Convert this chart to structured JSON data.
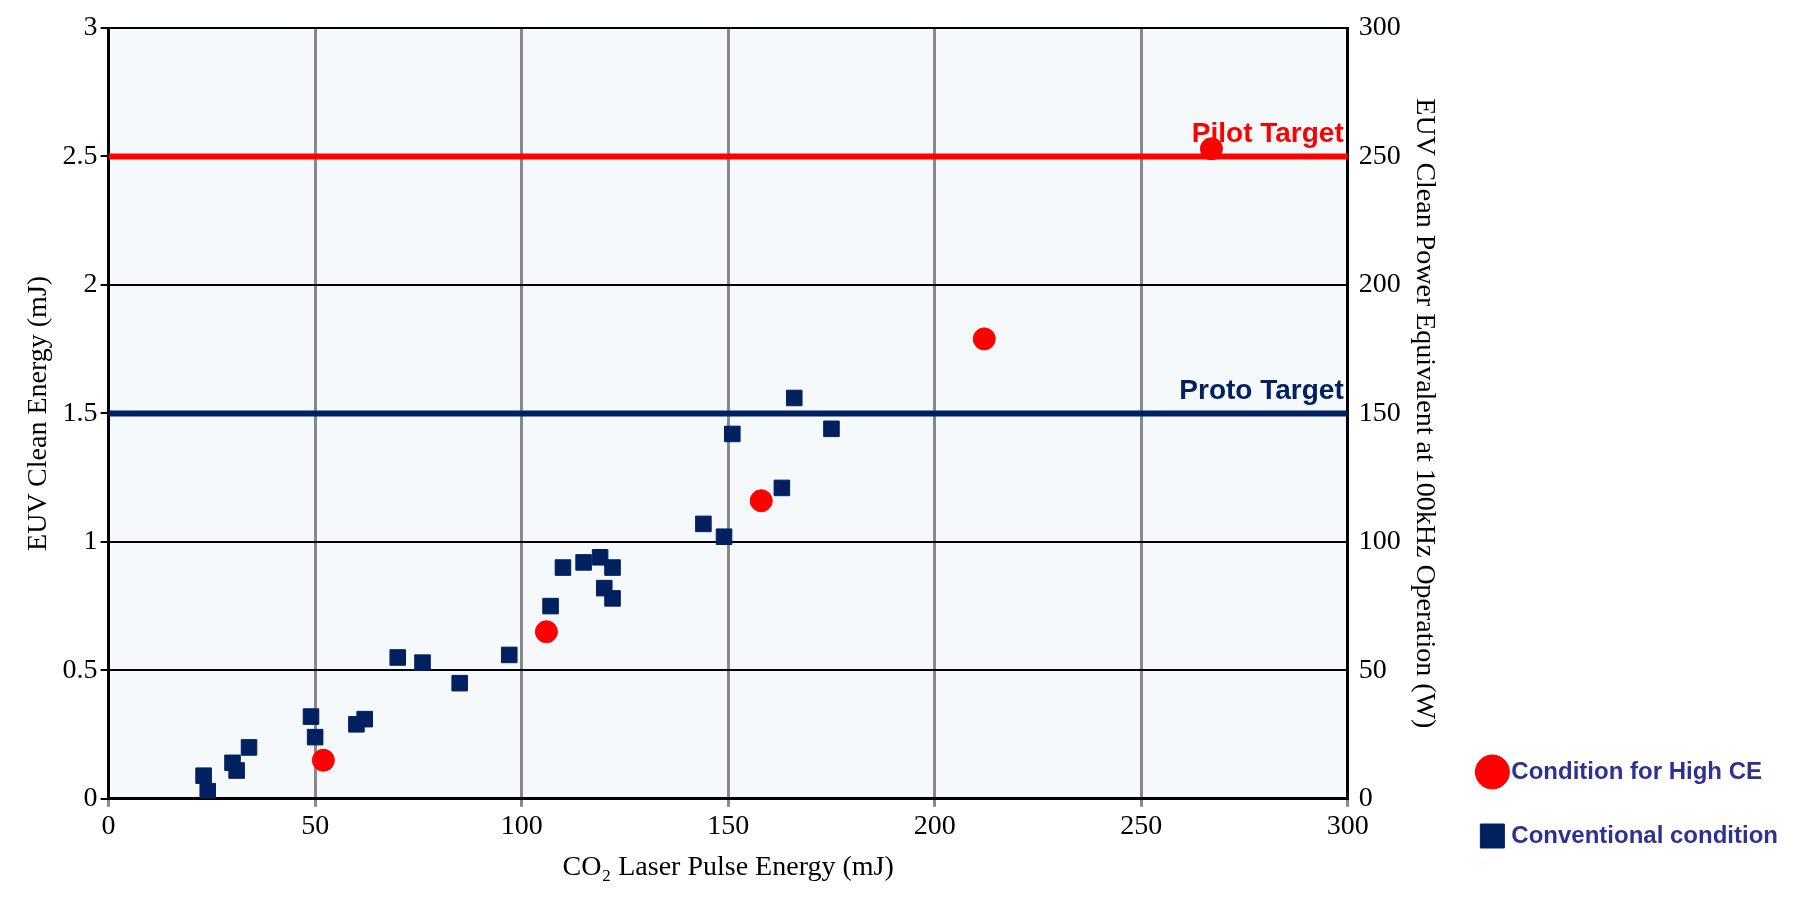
{
  "chart_data": {
    "type": "scatter",
    "xlabel": "CO₂ Laser Pulse Energy (mJ)",
    "ylabel": "EUV Clean Energy (mJ)",
    "y2label": "EUV Clean Power Equivalent at 100kHz Operation (W)",
    "xlim": [
      0,
      300
    ],
    "xticks": [
      0,
      50,
      100,
      150,
      200,
      250,
      300
    ],
    "ylim": [
      0,
      3
    ],
    "yticks": [
      0,
      0.5,
      1,
      1.5,
      2,
      2.5,
      3
    ],
    "y2lim": [
      0,
      300
    ],
    "y2ticks": [
      0,
      50,
      100,
      150,
      200,
      250,
      300
    ],
    "grid": true,
    "legend": "right",
    "series": [
      {
        "name": "Condition for High CE",
        "color": "#ff0000",
        "marker": "circle",
        "x": [
          52,
          106,
          158,
          212,
          267
        ],
        "values": [
          0.15,
          0.65,
          1.16,
          1.79,
          2.53
        ]
      },
      {
        "name": "Conventional condition",
        "color": "#002060",
        "marker": "square",
        "x": [
          24,
          23,
          31,
          30,
          34,
          49,
          50,
          60,
          62,
          70,
          76,
          85,
          97,
          107,
          110,
          115,
          119,
          122,
          120,
          122,
          144,
          149,
          151,
          163,
          166,
          175
        ],
        "values": [
          0.03,
          0.09,
          0.11,
          0.14,
          0.2,
          0.32,
          0.24,
          0.29,
          0.31,
          0.55,
          0.53,
          0.45,
          0.56,
          0.75,
          0.9,
          0.92,
          0.94,
          0.9,
          0.82,
          0.78,
          1.07,
          1.02,
          1.42,
          1.21,
          1.56,
          1.44
        ]
      }
    ],
    "ref_lines": [
      {
        "axis": "y",
        "value": 2.5,
        "label": "Pilot Target",
        "color": "#ff0000"
      },
      {
        "axis": "y",
        "value": 1.5,
        "label": "Proto Target",
        "color": "#002060"
      }
    ]
  }
}
